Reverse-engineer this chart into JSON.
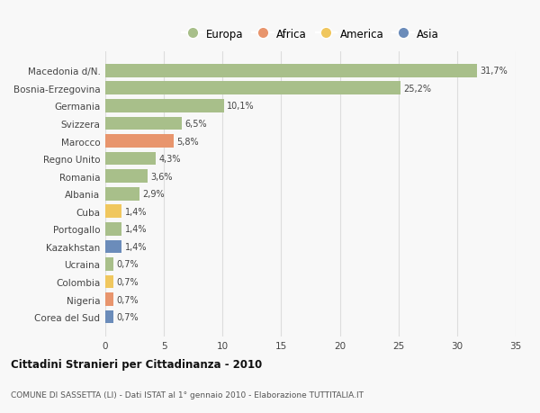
{
  "categories": [
    "Corea del Sud",
    "Nigeria",
    "Colombia",
    "Ucraina",
    "Kazakhstan",
    "Portogallo",
    "Cuba",
    "Albania",
    "Romania",
    "Regno Unito",
    "Marocco",
    "Svizzera",
    "Germania",
    "Bosnia-Erzegovina",
    "Macedonia d/N."
  ],
  "values": [
    0.7,
    0.7,
    0.7,
    0.7,
    1.4,
    1.4,
    1.4,
    2.9,
    3.6,
    4.3,
    5.8,
    6.5,
    10.1,
    25.2,
    31.7
  ],
  "bar_colors": [
    "#6b8cba",
    "#e8956d",
    "#f0c75e",
    "#a8bf8a",
    "#6b8cba",
    "#a8bf8a",
    "#f0c75e",
    "#a8bf8a",
    "#a8bf8a",
    "#a8bf8a",
    "#e8956d",
    "#a8bf8a",
    "#a8bf8a",
    "#a8bf8a",
    "#a8bf8a"
  ],
  "legend_labels": [
    "Europa",
    "Africa",
    "America",
    "Asia"
  ],
  "legend_colors": [
    "#a8bf8a",
    "#e8956d",
    "#f0c75e",
    "#6b8cba"
  ],
  "xlim": [
    0,
    35
  ],
  "xticks": [
    0,
    5,
    10,
    15,
    20,
    25,
    30,
    35
  ],
  "title": "Cittadini Stranieri per Cittadinanza - 2010",
  "subtitle": "COMUNE DI SASSETTA (LI) - Dati ISTAT al 1° gennaio 2010 - Elaborazione TUTTITALIA.IT",
  "background_color": "#f8f8f8",
  "bar_height": 0.75,
  "grid_color": "#dddddd"
}
